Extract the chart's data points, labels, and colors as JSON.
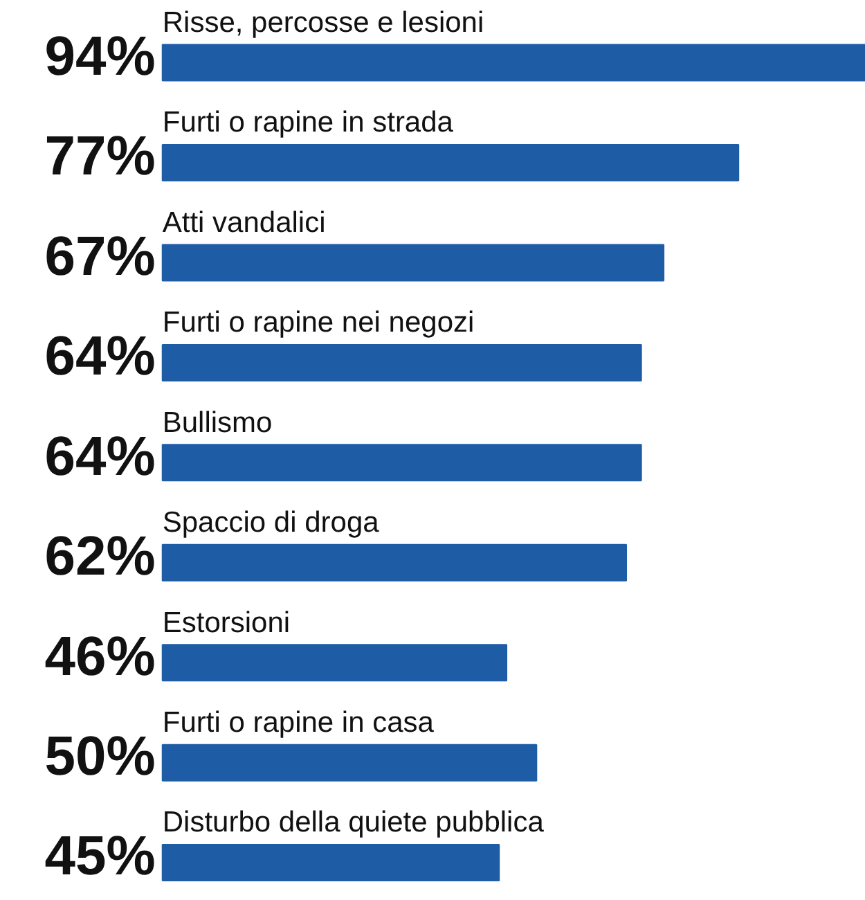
{
  "chart_data": {
    "type": "bar",
    "orientation": "horizontal",
    "categories": [
      "Risse, percosse e lesioni",
      "Furti o rapine in strada",
      "Atti vandalici",
      "Furti o rapine nei negozi",
      "Bullismo",
      "Spaccio di droga",
      "Estorsioni",
      "Furti o rapine in casa",
      "Disturbo della quiete pubblica"
    ],
    "values": [
      94,
      77,
      67,
      64,
      64,
      62,
      46,
      50,
      45
    ],
    "value_labels": [
      "94%",
      "77%",
      "67%",
      "64%",
      "64%",
      "62%",
      "46%",
      "50%",
      "45%"
    ],
    "color": "#1f5ca6",
    "grid": false,
    "tick_labels": false
  }
}
